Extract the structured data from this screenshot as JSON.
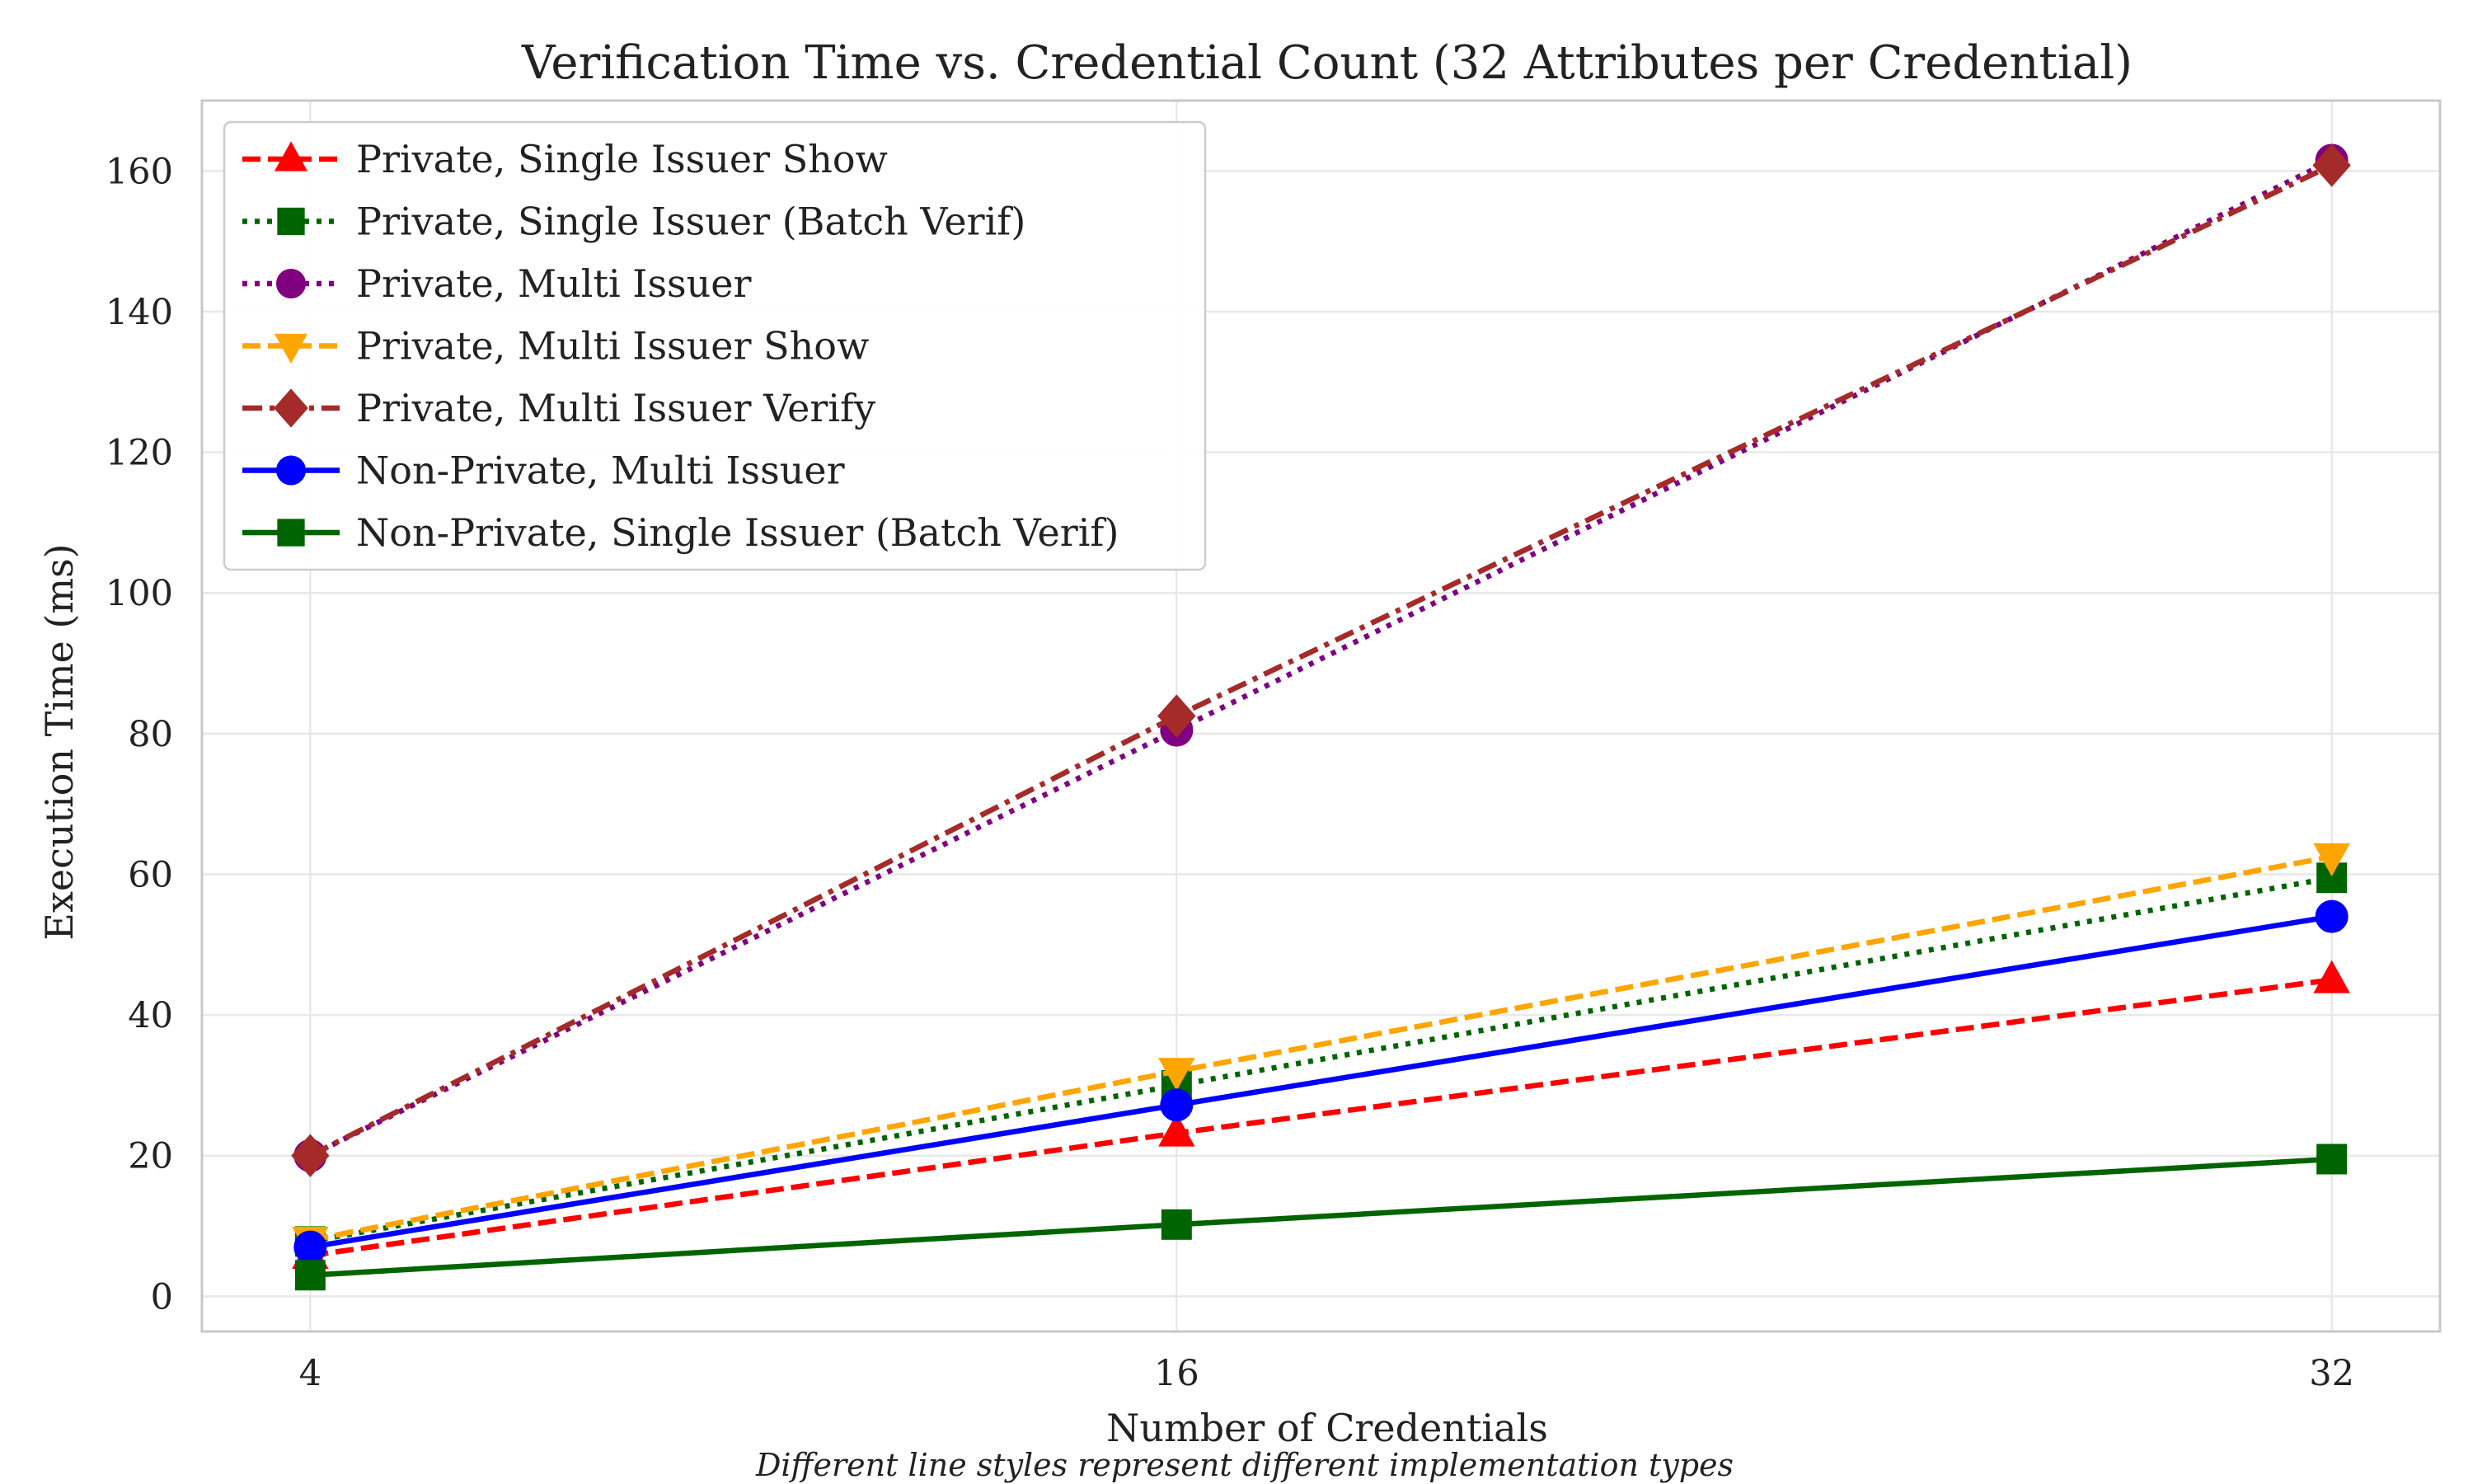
{
  "chart_data": {
    "type": "line",
    "title": "Verification Time vs. Credential Count (32 Attributes per Credential)",
    "xlabel": "Number of Credentials",
    "ylabel": "Execution Time (ms)",
    "caption": "Different line styles represent different implementation types",
    "x": [
      4,
      16,
      32
    ],
    "xticks": [
      "4",
      "16",
      "32"
    ],
    "xlim": [
      2.5,
      33.5
    ],
    "ylim": [
      -5,
      170
    ],
    "yticks": [
      0,
      20,
      40,
      60,
      80,
      100,
      120,
      140,
      160
    ],
    "grid": true,
    "legend_position": "top-left",
    "series": [
      {
        "name": "Private, Single Issuer Show",
        "values": [
          5.8,
          23.2,
          45.0
        ],
        "color": "#ff0000",
        "linestyle": "dashed",
        "marker": "triangle-up"
      },
      {
        "name": "Private, Single Issuer (Batch Verif)",
        "values": [
          7.8,
          30.0,
          59.5
        ],
        "color": "#006400",
        "linestyle": "dotted",
        "marker": "square"
      },
      {
        "name": "Private, Multi Issuer",
        "values": [
          20.0,
          80.5,
          161.5
        ],
        "color": "#800080",
        "linestyle": "dotted",
        "marker": "circle"
      },
      {
        "name": "Private, Multi Issuer Show",
        "values": [
          8.0,
          32.0,
          62.5
        ],
        "color": "#ffa500",
        "linestyle": "dashed",
        "marker": "triangle-down"
      },
      {
        "name": "Private, Multi Issuer Verify",
        "values": [
          20.0,
          82.5,
          160.8
        ],
        "color": "#a52a2a",
        "linestyle": "dashdot",
        "marker": "diamond"
      },
      {
        "name": "Non-Private, Multi Issuer",
        "values": [
          7.0,
          27.2,
          54.0
        ],
        "color": "#0000ff",
        "linestyle": "solid",
        "marker": "circle"
      },
      {
        "name": "Non-Private, Single Issuer (Batch Verif)",
        "values": [
          3.0,
          10.2,
          19.5
        ],
        "color": "#006400",
        "linestyle": "solid",
        "marker": "square"
      }
    ]
  }
}
